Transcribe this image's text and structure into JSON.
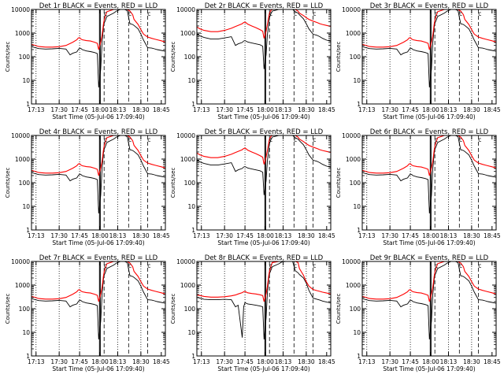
{
  "figure": {
    "background": "#ffffff",
    "axis_color": "#000000",
    "events_color": "#000000",
    "lld_color": "#ff0000"
  },
  "chart_data": [
    {
      "type": "line",
      "title": "Det 1r  BLACK = Events, RED = LLD",
      "variant": "a"
    },
    {
      "type": "line",
      "title": "Det 2r  BLACK = Events, RED = LLD",
      "variant": "b"
    },
    {
      "type": "line",
      "title": "Det 3r  BLACK = Events, RED = LLD",
      "variant": "a"
    },
    {
      "type": "line",
      "title": "Det 4r  BLACK = Events, RED = LLD",
      "variant": "a"
    },
    {
      "type": "line",
      "title": "Det 5r  BLACK = Events, RED = LLD",
      "variant": "b"
    },
    {
      "type": "line",
      "title": "Det 6r  BLACK = Events, RED = LLD",
      "variant": "a"
    },
    {
      "type": "line",
      "title": "Det 7r  BLACK = Events, RED = LLD",
      "variant": "a"
    },
    {
      "type": "line",
      "title": "Det 8r  BLACK = Events, RED = LLD",
      "variant": "c"
    },
    {
      "type": "line",
      "title": "Det 9r  BLACK = Events, RED = LLD",
      "variant": "a"
    }
  ],
  "shared": {
    "ylabel": "Counts/sec",
    "xlabel": "Start Time (05-Jul-06 17:09:40)",
    "yscale": "log",
    "ylim": [
      1,
      10000
    ],
    "yticks": [
      1,
      10,
      100,
      1000,
      10000
    ],
    "ytick_labels": [
      "1",
      "10",
      "100",
      "1000",
      "10000"
    ],
    "xlim": [
      9.67,
      48.0
    ],
    "x_ticks": [
      13,
      30,
      45,
      60,
      73,
      90,
      105
    ],
    "x_tick_labels": [
      "17:13",
      "17:30",
      "17:45",
      "18:00",
      "18:13",
      "18:30",
      "18:45"
    ],
    "dotted_lines_x": [
      13,
      30,
      45,
      73,
      90
    ],
    "dashed_lines_x": [
      63,
      81,
      95
    ],
    "solid_lines_x": [
      59.6,
      60.2
    ],
    "markers": [
      "c",
      "c",
      "c"
    ],
    "grid": false,
    "x_minutes": [
      9.7,
      12,
      15,
      20,
      25,
      30,
      35,
      38,
      40,
      43,
      44,
      45,
      46,
      47,
      50,
      53,
      56,
      58,
      59,
      60.5,
      61.5,
      62.5,
      63,
      64,
      65,
      70,
      72,
      75,
      78,
      80,
      82,
      84,
      85,
      88,
      90,
      92,
      95,
      98,
      100,
      102,
      105,
      108
    ],
    "variant_a": {
      "lld": [
        330,
        305,
        270,
        255,
        255,
        265,
        300,
        360,
        410,
        520,
        620,
        640,
        560,
        520,
        480,
        460,
        410,
        370,
        200,
        420,
        800,
        2300,
        3500,
        5500,
        8000,
        10000,
        10000,
        10000,
        10000,
        10000,
        8500,
        6000,
        3800,
        2300,
        1400,
        900,
        680,
        600,
        560,
        520,
        470,
        420
      ],
      "events": [
        270,
        245,
        220,
        210,
        215,
        225,
        210,
        120,
        140,
        160,
        200,
        230,
        220,
        200,
        175,
        165,
        150,
        135,
        5,
        30,
        400,
        1700,
        2600,
        3500,
        5000,
        7000,
        8500,
        10000,
        10000,
        9000,
        2500,
        2300,
        2100,
        1500,
        900,
        500,
        240,
        230,
        215,
        200,
        185,
        170
      ]
    },
    "variant_b": {
      "lld": [
        1800,
        1500,
        1300,
        1150,
        1150,
        1300,
        1600,
        1900,
        2100,
        2500,
        2800,
        2900,
        2700,
        2400,
        2000,
        1700,
        1400,
        1200,
        600,
        1200,
        2400,
        5000,
        7000,
        9000,
        10000,
        10000,
        10000,
        10000,
        10000,
        10000,
        10000,
        8500,
        7000,
        5500,
        4500,
        3800,
        3200,
        2800,
        2500,
        2300,
        2100,
        1900
      ],
      "events": [
        900,
        750,
        650,
        560,
        560,
        620,
        700,
        300,
        350,
        400,
        460,
        480,
        450,
        420,
        380,
        350,
        320,
        280,
        30,
        120,
        900,
        2500,
        4500,
        6500,
        8500,
        10000,
        10000,
        10000,
        10000,
        10000,
        8000,
        7000,
        6000,
        4000,
        2500,
        1500,
        900,
        800,
        700,
        600,
        500,
        450
      ]
    },
    "variant_c": {
      "lld": [
        380,
        360,
        330,
        310,
        310,
        320,
        350,
        380,
        420,
        480,
        520,
        540,
        500,
        470,
        440,
        420,
        390,
        360,
        200,
        420,
        900,
        2600,
        3800,
        6000,
        9000,
        10000,
        10000,
        10000,
        10000,
        10000,
        10000,
        9000,
        5000,
        2600,
        1400,
        900,
        650,
        580,
        540,
        500,
        460,
        420
      ],
      "events": [
        300,
        280,
        250,
        240,
        240,
        250,
        240,
        120,
        140,
        6,
        120,
        180,
        170,
        160,
        150,
        140,
        130,
        120,
        5,
        40,
        500,
        1900,
        3000,
        4200,
        6000,
        8000,
        9500,
        10000,
        10000,
        10000,
        4000,
        3300,
        2800,
        2000,
        1200,
        600,
        280,
        250,
        230,
        210,
        190,
        175
      ]
    }
  }
}
